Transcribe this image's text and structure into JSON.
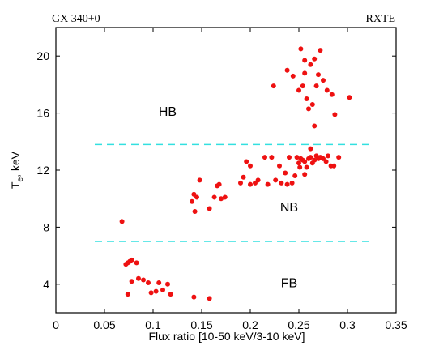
{
  "chart_data": {
    "type": "scatter",
    "header_left": "GX 340+0",
    "header_right": "RXTE",
    "xlabel": "Flux ratio [10-50 keV/3-10 keV]",
    "ylabel_main": "T",
    "ylabel_sub": "e",
    "ylabel_rest": ", keV",
    "xlim": [
      0,
      0.35
    ],
    "ylim": [
      2,
      22
    ],
    "xticks": [
      0,
      0.05,
      0.1,
      0.15,
      0.2,
      0.25,
      0.3,
      0.35
    ],
    "xtick_labels": [
      "0",
      "0.05",
      "0.1",
      "0.15",
      "0.2",
      "0.25",
      "0.3",
      "0.35"
    ],
    "yticks": [
      4,
      8,
      12,
      16,
      20
    ],
    "ytick_labels": [
      "4",
      "8",
      "12",
      "16",
      "20"
    ],
    "grid": false,
    "region_labels": [
      {
        "text": "HB",
        "x": 0.115,
        "y": 15.8
      },
      {
        "text": "NB",
        "x": 0.24,
        "y": 9.1
      },
      {
        "text": "FB",
        "x": 0.24,
        "y": 3.8
      }
    ],
    "threshold_lines": [
      {
        "y": 13.8,
        "x_start": 0.04,
        "x_end": 0.325,
        "color": "#33e0e0",
        "style": "dashed"
      },
      {
        "y": 7.0,
        "x_start": 0.04,
        "x_end": 0.325,
        "color": "#33e0e0",
        "style": "dashed"
      }
    ],
    "point_color": "#ee1111",
    "points": [
      [
        0.072,
        5.4
      ],
      [
        0.074,
        5.5
      ],
      [
        0.076,
        5.6
      ],
      [
        0.078,
        5.7
      ],
      [
        0.083,
        5.5
      ],
      [
        0.074,
        3.3
      ],
      [
        0.078,
        4.2
      ],
      [
        0.085,
        4.4
      ],
      [
        0.09,
        4.3
      ],
      [
        0.095,
        4.1
      ],
      [
        0.098,
        3.4
      ],
      [
        0.103,
        3.5
      ],
      [
        0.106,
        4.1
      ],
      [
        0.11,
        3.6
      ],
      [
        0.115,
        4.0
      ],
      [
        0.118,
        3.3
      ],
      [
        0.142,
        3.1
      ],
      [
        0.158,
        3.0
      ],
      [
        0.068,
        8.4
      ],
      [
        0.14,
        9.8
      ],
      [
        0.143,
        9.1
      ],
      [
        0.142,
        10.3
      ],
      [
        0.145,
        10.1
      ],
      [
        0.148,
        11.3
      ],
      [
        0.158,
        9.3
      ],
      [
        0.163,
        10.1
      ],
      [
        0.166,
        10.9
      ],
      [
        0.168,
        11.0
      ],
      [
        0.17,
        10.0
      ],
      [
        0.174,
        10.1
      ],
      [
        0.19,
        11.1
      ],
      [
        0.193,
        11.5
      ],
      [
        0.196,
        12.6
      ],
      [
        0.2,
        11.0
      ],
      [
        0.2,
        12.3
      ],
      [
        0.205,
        11.1
      ],
      [
        0.208,
        11.3
      ],
      [
        0.215,
        12.9
      ],
      [
        0.218,
        11.0
      ],
      [
        0.222,
        12.9
      ],
      [
        0.226,
        11.3
      ],
      [
        0.23,
        12.3
      ],
      [
        0.232,
        11.1
      ],
      [
        0.236,
        11.8
      ],
      [
        0.238,
        11.0
      ],
      [
        0.24,
        12.9
      ],
      [
        0.243,
        11.1
      ],
      [
        0.246,
        11.6
      ],
      [
        0.248,
        12.9
      ],
      [
        0.25,
        12.5
      ],
      [
        0.251,
        12.2
      ],
      [
        0.252,
        12.8
      ],
      [
        0.254,
        12.7
      ],
      [
        0.256,
        12.6
      ],
      [
        0.258,
        12.2
      ],
      [
        0.26,
        12.8
      ],
      [
        0.262,
        12.9
      ],
      [
        0.264,
        12.5
      ],
      [
        0.266,
        12.7
      ],
      [
        0.268,
        13.0
      ],
      [
        0.27,
        12.8
      ],
      [
        0.272,
        12.9
      ],
      [
        0.275,
        12.8
      ],
      [
        0.278,
        12.6
      ],
      [
        0.28,
        13.0
      ],
      [
        0.283,
        12.3
      ],
      [
        0.286,
        12.3
      ],
      [
        0.291,
        12.9
      ],
      [
        0.256,
        11.7
      ],
      [
        0.262,
        13.5
      ],
      [
        0.266,
        15.1
      ],
      [
        0.224,
        17.9
      ],
      [
        0.238,
        19.0
      ],
      [
        0.244,
        18.6
      ],
      [
        0.25,
        17.6
      ],
      [
        0.252,
        20.5
      ],
      [
        0.254,
        17.9
      ],
      [
        0.256,
        18.8
      ],
      [
        0.258,
        17.0
      ],
      [
        0.26,
        16.3
      ],
      [
        0.262,
        19.4
      ],
      [
        0.264,
        16.6
      ],
      [
        0.266,
        19.8
      ],
      [
        0.268,
        17.9
      ],
      [
        0.27,
        18.7
      ],
      [
        0.272,
        20.4
      ],
      [
        0.275,
        18.3
      ],
      [
        0.279,
        17.6
      ],
      [
        0.284,
        17.3
      ],
      [
        0.287,
        15.9
      ],
      [
        0.302,
        17.1
      ],
      [
        0.256,
        19.7
      ]
    ]
  }
}
